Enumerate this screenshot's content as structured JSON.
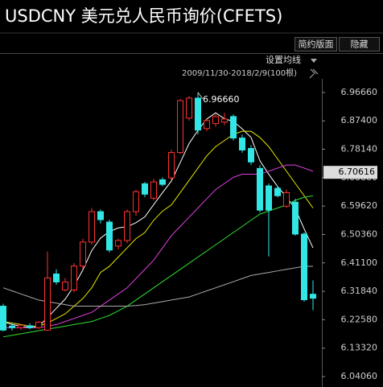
{
  "chart_data": {
    "type": "candlestick",
    "title": "USDCNY 美元兑人民币询价(CFETS)",
    "buttons": [
      "简约版面",
      "隐藏"
    ],
    "ma_setting": "设置均线",
    "range_label": "2009/11/30-2018/2/9(100根)",
    "high_label": "6.96660",
    "last_price": 6.70616,
    "up_color": "#ff3030",
    "down_color": "#33e6e6",
    "ylim": [
      6.0197,
      7.0135
    ],
    "yticks": [
      {
        "value": 6.9666,
        "label": "6.96660"
      },
      {
        "value": 6.874,
        "label": "6.87400"
      },
      {
        "value": 6.7814,
        "label": "6.78140"
      },
      {
        "value": 6.6888,
        "label": "6.68880"
      },
      {
        "value": 6.5962,
        "label": "6.59620"
      },
      {
        "value": 6.5036,
        "label": "6.50360"
      },
      {
        "value": 6.411,
        "label": "6.41100"
      },
      {
        "value": 6.3184,
        "label": "6.31840"
      },
      {
        "value": 6.2258,
        "label": "6.22580"
      },
      {
        "value": 6.1332,
        "label": "6.13320"
      },
      {
        "value": 6.0406,
        "label": "6.04060"
      }
    ],
    "ohlc": [
      [
        6.27,
        6.278,
        6.188,
        6.192
      ],
      [
        6.205,
        6.215,
        6.19,
        6.2
      ],
      [
        6.2,
        6.212,
        6.193,
        6.208
      ],
      [
        6.206,
        6.214,
        6.195,
        6.2
      ],
      [
        6.2,
        6.222,
        6.196,
        6.218
      ],
      [
        6.192,
        6.448,
        6.19,
        6.362
      ],
      [
        6.375,
        6.39,
        6.34,
        6.349
      ],
      [
        6.323,
        6.362,
        6.318,
        6.349
      ],
      [
        6.323,
        6.41,
        6.315,
        6.401
      ],
      [
        6.401,
        6.49,
        6.39,
        6.479
      ],
      [
        6.479,
        6.59,
        6.47,
        6.578
      ],
      [
        6.578,
        6.585,
        6.54,
        6.552
      ],
      [
        6.544,
        6.552,
        6.445,
        6.453
      ],
      [
        6.466,
        6.49,
        6.455,
        6.484
      ],
      [
        6.484,
        6.585,
        6.475,
        6.578
      ],
      [
        6.578,
        6.65,
        6.565,
        6.643
      ],
      [
        6.669,
        6.675,
        6.625,
        6.635
      ],
      [
        6.622,
        6.685,
        6.615,
        6.675
      ],
      [
        6.682,
        6.69,
        6.66,
        6.667
      ],
      [
        6.688,
        6.78,
        6.68,
        6.771
      ],
      [
        6.771,
        6.945,
        6.765,
        6.94
      ],
      [
        6.883,
        6.955,
        6.875,
        6.948
      ],
      [
        6.948,
        6.9666,
        6.83,
        6.844
      ],
      [
        6.849,
        6.88,
        6.84,
        6.875
      ],
      [
        6.865,
        6.895,
        6.855,
        6.888
      ],
      [
        6.87,
        6.9,
        6.86,
        6.88
      ],
      [
        6.888,
        6.895,
        6.81,
        6.818
      ],
      [
        6.818,
        6.83,
        6.77,
        6.779
      ],
      [
        6.784,
        6.795,
        6.73,
        6.74
      ],
      [
        6.719,
        6.73,
        6.575,
        6.583
      ],
      [
        6.662,
        6.67,
        6.432,
        6.583
      ],
      [
        6.654,
        6.662,
        6.625,
        6.63
      ],
      [
        6.596,
        6.65,
        6.59,
        6.64
      ],
      [
        6.609,
        6.62,
        6.5,
        6.505
      ],
      [
        6.505,
        6.51,
        6.285,
        6.291
      ],
      [
        6.309,
        6.354,
        6.257,
        6.296
      ]
    ],
    "series": [
      {
        "color": "#ffffff",
        "values": [
          6.22,
          6.21,
          6.205,
          6.2,
          6.203,
          6.233,
          6.263,
          6.293,
          6.336,
          6.388,
          6.451,
          6.492,
          6.513,
          6.525,
          6.529,
          6.542,
          6.561,
          6.601,
          6.64,
          6.678,
          6.738,
          6.8,
          6.843,
          6.88,
          6.9,
          6.881,
          6.872,
          6.848,
          6.82,
          6.744,
          6.7,
          6.66,
          6.626,
          6.588,
          6.522,
          6.46
        ]
      },
      {
        "color": "#e6e600",
        "values": [
          6.22,
          6.215,
          6.21,
          6.205,
          6.205,
          6.215,
          6.23,
          6.245,
          6.27,
          6.295,
          6.33,
          6.38,
          6.4,
          6.43,
          6.46,
          6.49,
          6.51,
          6.55,
          6.58,
          6.6,
          6.64,
          6.68,
          6.72,
          6.76,
          6.79,
          6.81,
          6.83,
          6.84,
          6.84,
          6.82,
          6.79,
          6.75,
          6.71,
          6.67,
          6.63,
          6.59
        ]
      },
      {
        "color": "#e040e0",
        "values": [
          6.2,
          6.2,
          6.2,
          6.2,
          6.2,
          6.205,
          6.21,
          6.22,
          6.23,
          6.24,
          6.25,
          6.27,
          6.29,
          6.31,
          6.33,
          6.36,
          6.39,
          6.42,
          6.46,
          6.5,
          6.53,
          6.56,
          6.59,
          6.62,
          6.65,
          6.67,
          6.69,
          6.7,
          6.7,
          6.7,
          6.71,
          6.72,
          6.73,
          6.73,
          6.72,
          6.71
        ]
      },
      {
        "color": "#30e030",
        "values": [
          6.17,
          6.175,
          6.18,
          6.185,
          6.19,
          6.195,
          6.2,
          6.205,
          6.21,
          6.215,
          6.22,
          6.23,
          6.24,
          6.255,
          6.27,
          6.29,
          6.31,
          6.33,
          6.35,
          6.37,
          6.39,
          6.41,
          6.43,
          6.45,
          6.47,
          6.49,
          6.51,
          6.53,
          6.55,
          6.57,
          6.58,
          6.59,
          6.6,
          6.615,
          6.625,
          6.63
        ]
      },
      {
        "color": "#aaaaaa",
        "values": [
          6.33,
          6.32,
          6.31,
          6.3,
          6.29,
          6.285,
          6.28,
          6.275,
          6.27,
          6.27,
          6.27,
          6.27,
          6.27,
          6.27,
          6.27,
          6.272,
          6.275,
          6.28,
          6.285,
          6.29,
          6.295,
          6.3,
          6.31,
          6.32,
          6.33,
          6.34,
          6.35,
          6.36,
          6.37,
          6.375,
          6.38,
          6.385,
          6.39,
          6.395,
          6.4,
          6.4
        ]
      }
    ]
  }
}
